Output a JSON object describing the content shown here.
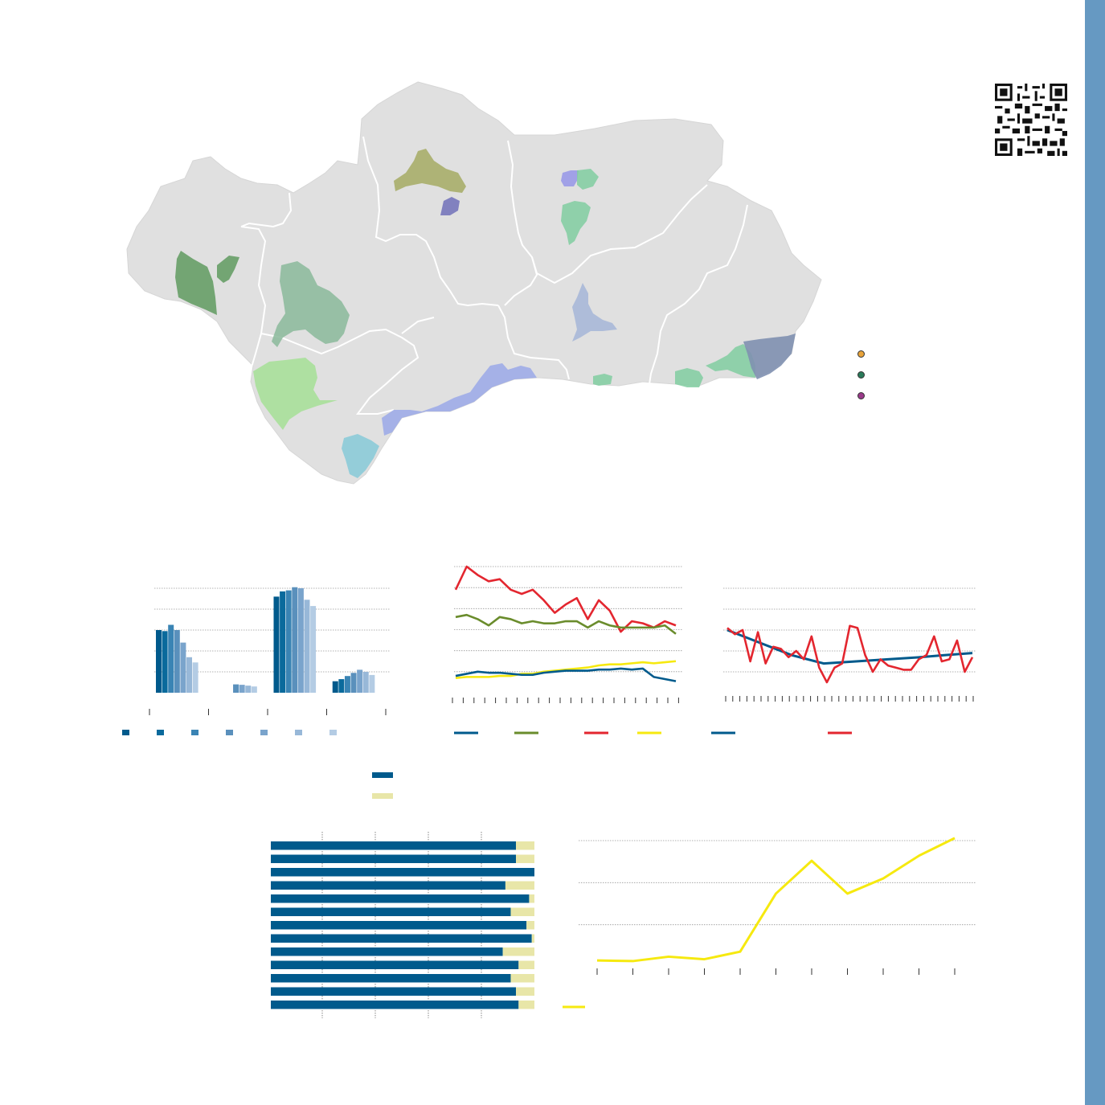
{
  "page": {
    "accent_sidebar": "#6699c2",
    "qr_icon": "qr-code-icon"
  },
  "map": {
    "region": "Andalucía",
    "land_color": "#e0e0e0",
    "border_color": "#ffffff",
    "zones": [
      {
        "id": "zone-huelva-west",
        "color": "#5f9a5f"
      },
      {
        "id": "zone-sevilla-north",
        "color": "#8ab89a"
      },
      {
        "id": "zone-cadiz-coast",
        "color": "#a8e09a"
      },
      {
        "id": "zone-gibraltar",
        "color": "#8ccbd8"
      },
      {
        "id": "zone-malaga-coast",
        "color": "#9aa8e8"
      },
      {
        "id": "zone-cordoba-north",
        "color": "#a8ae6a"
      },
      {
        "id": "zone-cordoba-purple",
        "color": "#7777bb"
      },
      {
        "id": "zone-jaen-north-blue",
        "color": "#9a9ae8"
      },
      {
        "id": "zone-jaen-green",
        "color": "#80cca0"
      },
      {
        "id": "zone-granada-center",
        "color": "#a8b8d8"
      },
      {
        "id": "zone-granada-coast",
        "color": "#80cca0"
      },
      {
        "id": "zone-almeria-coast",
        "color": "#80cca0"
      },
      {
        "id": "zone-almeria-east",
        "color": "#8090b0"
      }
    ],
    "legend": [
      {
        "color": "#e8a33a"
      },
      {
        "color": "#2a7a5a"
      },
      {
        "color": "#9a3a8a"
      }
    ]
  },
  "chart_data": [
    {
      "type": "bar",
      "id": "grouped-bars",
      "group_count": 4,
      "series_colors": [
        "#005a8c",
        "#0a6a9c",
        "#3a84b4",
        "#5a90bc",
        "#7aa4cc",
        "#98b8d8",
        "#b4cce4"
      ],
      "values": [
        [
          30.0,
          29.5,
          32.5,
          30.0,
          24.0,
          17.0,
          14.5
        ],
        [
          0,
          0,
          0,
          4.0,
          3.8,
          3.4,
          3.0
        ],
        [
          46.0,
          48.5,
          49.0,
          50.5,
          50.0,
          44.5,
          41.5
        ],
        [
          5.5,
          6.5,
          8.0,
          9.5,
          11.0,
          10.0,
          8.5
        ]
      ],
      "ylim": [
        0,
        50
      ],
      "grid": true
    },
    {
      "type": "line",
      "id": "multi-line",
      "series": [
        {
          "color": "#e3262f",
          "values": [
            49,
            60,
            56,
            53,
            54,
            49,
            47,
            49,
            44,
            38,
            42,
            45,
            35,
            44,
            39,
            29,
            34,
            33,
            31,
            34,
            32
          ]
        },
        {
          "color": "#6a8c2c",
          "values": [
            36,
            37,
            35,
            32,
            36,
            35,
            33,
            34,
            33,
            33,
            34,
            34,
            31,
            34,
            32,
            31,
            31,
            31,
            31,
            32,
            28
          ]
        },
        {
          "color": "#f6e90f",
          "values": [
            7,
            7.5,
            7.5,
            7.5,
            8,
            8,
            9,
            9,
            10,
            10.5,
            11,
            11.5,
            12,
            13,
            13.5,
            13.5,
            14,
            14.5,
            14,
            14.5,
            15
          ]
        },
        {
          "color": "#005a8c",
          "values": [
            8,
            9,
            10,
            9.5,
            9.5,
            9,
            8.5,
            8.5,
            9.5,
            10,
            10.5,
            10.5,
            10.5,
            11,
            11,
            11.5,
            11,
            11.5,
            7.5,
            6.5,
            5.5
          ]
        }
      ],
      "ylim": [
        0,
        60
      ],
      "grid": true,
      "x_ticks": 22
    },
    {
      "type": "line",
      "id": "trend-line",
      "series": [
        {
          "color": "#005a8c",
          "values": [
            30,
            24,
            18,
            14,
            15,
            16,
            17,
            18,
            19
          ]
        },
        {
          "color": "#e3262f",
          "values": [
            31,
            28,
            30,
            15,
            29,
            14,
            22,
            21,
            17,
            20,
            16,
            27,
            12,
            5,
            12,
            14,
            32,
            31,
            18,
            10,
            16,
            13,
            12,
            11,
            11,
            16,
            18,
            27,
            15,
            16,
            25,
            10,
            17
          ]
        }
      ],
      "ylim": [
        0,
        50
      ],
      "grid": true,
      "x_ticks": 36
    },
    {
      "type": "bar",
      "id": "stacked-bars",
      "orientation": "horizontal",
      "series": [
        {
          "color": "#005a8c",
          "values": [
            93,
            93,
            100,
            89,
            98,
            91,
            97,
            99,
            88,
            94,
            91,
            93,
            94
          ]
        },
        {
          "color": "#e8e6a8",
          "values": [
            7,
            7,
            0,
            11,
            2,
            9,
            3,
            1,
            12,
            6,
            9,
            7,
            6
          ]
        }
      ],
      "xlim": [
        0,
        100
      ]
    },
    {
      "type": "line",
      "id": "yellow-line",
      "series": [
        {
          "color": "#f6e90f",
          "values": [
            5,
            4.5,
            8,
            6,
            12,
            58,
            84,
            58,
            70,
            88,
            102
          ]
        }
      ],
      "ylim": [
        0,
        100
      ],
      "grid": true,
      "x_ticks": 11
    }
  ]
}
